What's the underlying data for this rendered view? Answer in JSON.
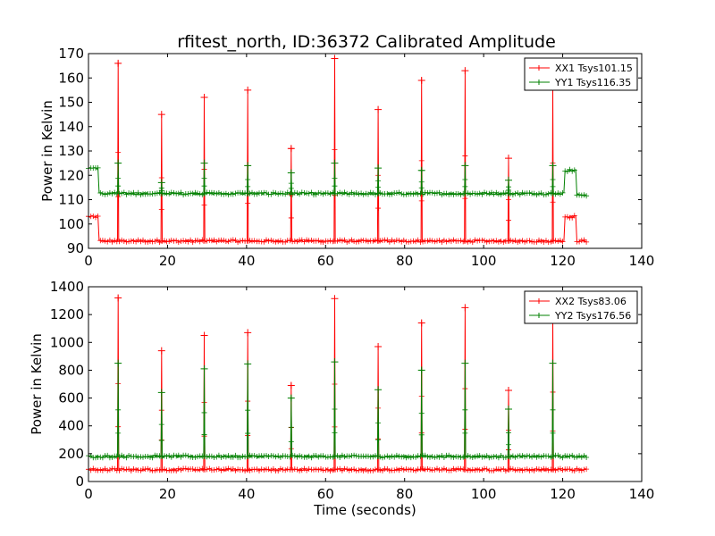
{
  "figure": {
    "title": "rfitest_north, ID:36372 Calibrated Amplitude"
  },
  "chart_data": [
    {
      "type": "line",
      "title": "rfitest_north, ID:36372 Calibrated Amplitude",
      "xlabel": "",
      "ylabel": "Power in Kelvin",
      "xlim": [
        0,
        140
      ],
      "ylim": [
        90,
        170
      ],
      "xticks": [
        "0",
        "20",
        "40",
        "60",
        "80",
        "100",
        "120",
        "140"
      ],
      "yticks": [
        "90",
        "100",
        "110",
        "120",
        "130",
        "140",
        "150",
        "160",
        "170"
      ],
      "grid": false,
      "legend_position": "top-right",
      "spike_times": [
        7.5,
        18.5,
        29.3,
        40.3,
        51.3,
        62.3,
        73.3,
        84.3,
        95.3,
        106.3,
        117.5
      ],
      "series": [
        {
          "name": "XX1 Tsys101.15",
          "color": "#ff0000",
          "marker": "+",
          "segments": [
            {
              "x_start": 0,
              "x_end": 2.5,
              "level": 103
            },
            {
              "x_start": 2.5,
              "x_end": 120.5,
              "level": 93
            },
            {
              "x_start": 120.5,
              "x_end": 123.5,
              "level": 103
            },
            {
              "x_start": 123.5,
              "x_end": 126,
              "level": 93
            }
          ],
          "spike_peaks": [
            166,
            145,
            152,
            155,
            131,
            168,
            147,
            159,
            163,
            127,
            157
          ]
        },
        {
          "name": "YY1 Tsys116.35",
          "color": "#008000",
          "marker": "+",
          "segments": [
            {
              "x_start": 0,
              "x_end": 2.5,
              "level": 123
            },
            {
              "x_start": 2.5,
              "x_end": 120.5,
              "level": 112.5
            },
            {
              "x_start": 120.5,
              "x_end": 123.5,
              "level": 122
            },
            {
              "x_start": 123.5,
              "x_end": 126,
              "level": 112
            }
          ],
          "spike_peaks": [
            125,
            117,
            125,
            124,
            121,
            125,
            123,
            122,
            124,
            118,
            124
          ]
        }
      ]
    },
    {
      "type": "line",
      "title": "",
      "xlabel": "Time (seconds)",
      "ylabel": "Power in Kelvin",
      "xlim": [
        0,
        140
      ],
      "ylim": [
        0,
        1400
      ],
      "xticks": [
        "0",
        "20",
        "40",
        "60",
        "80",
        "100",
        "120",
        "140"
      ],
      "yticks": [
        "0",
        "200",
        "400",
        "600",
        "800",
        "1000",
        "1200",
        "1400"
      ],
      "grid": false,
      "legend_position": "top-right",
      "spike_times": [
        7.5,
        18.5,
        29.3,
        40.3,
        51.3,
        62.3,
        73.3,
        84.3,
        95.3,
        106.3,
        117.5
      ],
      "series": [
        {
          "name": "XX2 Tsys83.06",
          "color": "#ff0000",
          "marker": "+",
          "segments": [
            {
              "x_start": 0,
              "x_end": 126,
              "level": 85
            }
          ],
          "spike_peaks": [
            1320,
            940,
            1050,
            1070,
            690,
            1315,
            970,
            1140,
            1250,
            655,
            1200
          ]
        },
        {
          "name": "YY2 Tsys176.56",
          "color": "#008000",
          "marker": "+",
          "segments": [
            {
              "x_start": 0,
              "x_end": 126,
              "level": 180
            }
          ],
          "spike_peaks": [
            850,
            640,
            810,
            845,
            600,
            860,
            660,
            800,
            850,
            520,
            850
          ]
        }
      ]
    }
  ]
}
